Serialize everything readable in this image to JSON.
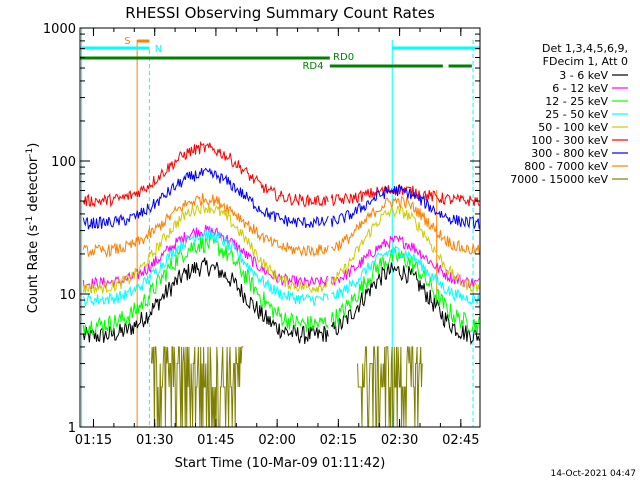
{
  "chart_data": {
    "type": "line",
    "title": "RHESSI Observing Summary Count Rates",
    "xlabel": "Start Time (10-Mar-09 01:11:42)",
    "ylabel_parts": [
      "Count Rate (s",
      "-1",
      " detector",
      "-1",
      ")"
    ],
    "y_scale": "log",
    "ylim": [
      1,
      1000
    ],
    "xlim_minutes": [
      0,
      98
    ],
    "x_tick_labels": [
      "01:15",
      "01:30",
      "01:45",
      "02:00",
      "02:15",
      "02:30",
      "02:45"
    ],
    "x_ticks_minutes": [
      3.3,
      18.3,
      33.3,
      48.3,
      63.3,
      78.3,
      93.3
    ],
    "y_tick_labels": [
      "1",
      "10",
      "100",
      "1000"
    ],
    "y_ticks": [
      1,
      10,
      100,
      1000
    ],
    "legend_header": [
      "Det 1,3,4,5,6,9,",
      "FDecim 1, Att 0"
    ],
    "legend_placement": "right",
    "timestamp": "14-Oct-2021 04:47",
    "series": [
      {
        "name": "3 - 6 keV",
        "color": "#000000",
        "low": 4.8,
        "peak1": 16,
        "peak2": 15
      },
      {
        "name": "6 - 12 keV",
        "color": "#ff00ff",
        "low": 12,
        "peak1": 30,
        "peak2": 25
      },
      {
        "name": "12 - 25 keV",
        "color": "#00ff00",
        "low": 5.8,
        "peak1": 24,
        "peak2": 19
      },
      {
        "name": "25 - 50 keV",
        "color": "#00ffff",
        "low": 9,
        "peak1": 28,
        "peak2": 21
      },
      {
        "name": "50 - 100 keV",
        "color": "#cccc00",
        "low": 11,
        "peak1": 45,
        "peak2": 42
      },
      {
        "name": "100 - 300 keV",
        "color": "#ff0000",
        "low": 50,
        "peak1": 125,
        "peak2": 61
      },
      {
        "name": "300 - 800 keV",
        "color": "#0000ff",
        "low": 34,
        "peak1": 80,
        "peak2": 60
      },
      {
        "name": "800 - 7000 keV",
        "color": "#ff8000",
        "low": 21,
        "peak1": 52,
        "peak2": 50
      },
      {
        "name": "7000 - 15000 keV",
        "color": "#808000",
        "low": 1,
        "peak1": 4,
        "peak2": 4
      }
    ],
    "flags": [
      {
        "label": "S",
        "color": "#ff8000",
        "start_min": 14.0,
        "end_min": 17.0
      },
      {
        "label": "N",
        "color": "#00ffff",
        "start_min": 0,
        "end_min": 17.0
      },
      {
        "label": "",
        "color": "#00ffff",
        "start_min": 76.5,
        "end_min": 98
      },
      {
        "label": "RD0",
        "color": "#008000",
        "start_min": 0,
        "end_min": 61.2
      },
      {
        "label": "RD4",
        "color": "#008000",
        "start_min": 61.2,
        "end_min": 88.9
      },
      {
        "label": "",
        "color": "#008000",
        "start_min": 90.3,
        "end_min": 96
      }
    ]
  }
}
